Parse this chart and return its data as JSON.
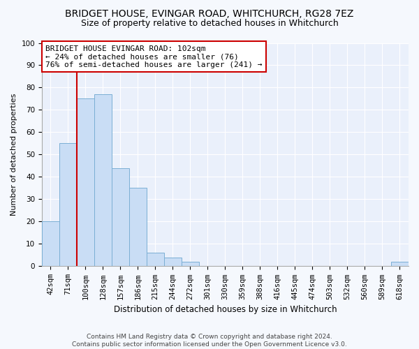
{
  "title": "BRIDGET HOUSE, EVINGAR ROAD, WHITCHURCH, RG28 7EZ",
  "subtitle": "Size of property relative to detached houses in Whitchurch",
  "xlabel": "Distribution of detached houses by size in Whitchurch",
  "ylabel": "Number of detached properties",
  "bar_labels": [
    "42sqm",
    "71sqm",
    "100sqm",
    "128sqm",
    "157sqm",
    "186sqm",
    "215sqm",
    "244sqm",
    "272sqm",
    "301sqm",
    "330sqm",
    "359sqm",
    "388sqm",
    "416sqm",
    "445sqm",
    "474sqm",
    "503sqm",
    "532sqm",
    "560sqm",
    "589sqm",
    "618sqm"
  ],
  "bar_heights": [
    20,
    55,
    75,
    77,
    44,
    35,
    6,
    4,
    2,
    0,
    0,
    0,
    0,
    0,
    0,
    0,
    0,
    0,
    0,
    0,
    2
  ],
  "bar_color": "#c9ddf5",
  "bar_edge_color": "#7bafd4",
  "vline_index": 2,
  "vline_color": "#cc0000",
  "annotation_text": "BRIDGET HOUSE EVINGAR ROAD: 102sqm\n← 24% of detached houses are smaller (76)\n76% of semi-detached houses are larger (241) →",
  "annotation_box_color": "#ffffff",
  "annotation_box_edge": "#cc0000",
  "ylim": [
    0,
    100
  ],
  "yticks": [
    0,
    10,
    20,
    30,
    40,
    50,
    60,
    70,
    80,
    90,
    100
  ],
  "footnote": "Contains HM Land Registry data © Crown copyright and database right 2024.\nContains public sector information licensed under the Open Government Licence v3.0.",
  "plot_bg_color": "#eaf0fb",
  "fig_bg_color": "#f5f8fd",
  "title_fontsize": 10,
  "subtitle_fontsize": 9,
  "annotation_fontsize": 8,
  "ylabel_fontsize": 8,
  "xlabel_fontsize": 8.5,
  "tick_fontsize": 7.5,
  "footnote_fontsize": 6.5
}
